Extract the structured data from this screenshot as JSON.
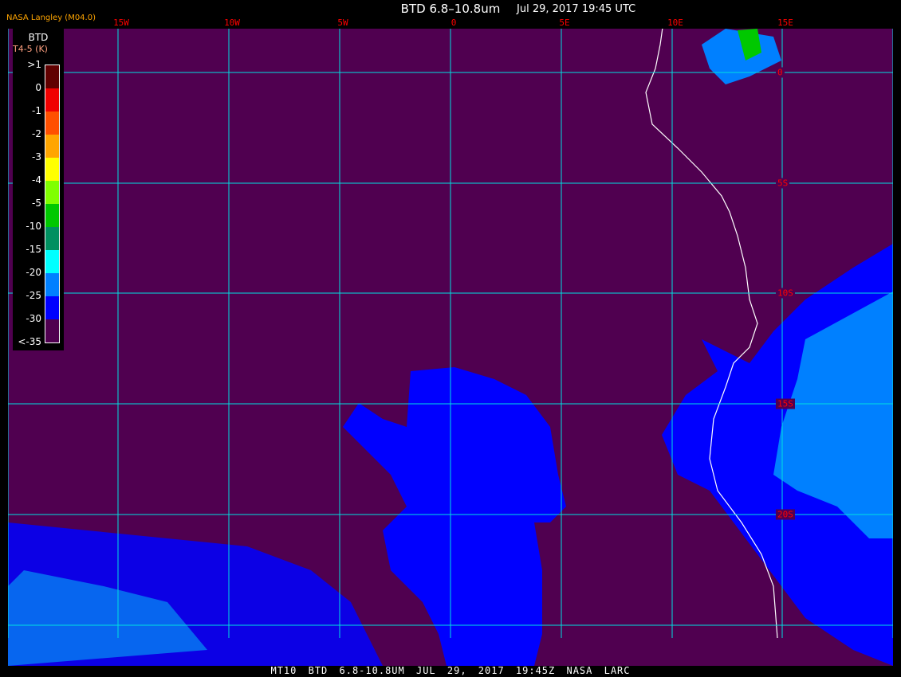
{
  "header": {
    "title": "BTD 6.8–10.8um",
    "date": "Jul 29, 2017 19:45 UTC",
    "producer": "NASA Langley (M04.0)"
  },
  "map": {
    "lon_labels": [
      "15W",
      "10W",
      "5W",
      "0",
      "5E",
      "10E",
      "15E"
    ],
    "lat_labels": [
      "0",
      "5S",
      "10S",
      "15S",
      "20S"
    ],
    "colors": {
      "background": "#500050",
      "gridline": "#00ffff",
      "coastline": "#ffffff",
      "moist_layer": "#0000ff",
      "moist_layer_light": "#0080ff"
    }
  },
  "legend": {
    "title": "BTD",
    "subtitle": "T4-5 (K)",
    "labels": [
      ">1",
      "0",
      "-1",
      "-2",
      "-3",
      "-4",
      "-5",
      "-10",
      "-15",
      "-20",
      "-25",
      "-30",
      "<-35"
    ],
    "colors": [
      "#600000",
      "#f00000",
      "#ff5000",
      "#ffa500",
      "#ffff00",
      "#80ff00",
      "#00c800",
      "#009060",
      "#00ffff",
      "#0080ff",
      "#0000ff",
      "#500050"
    ]
  },
  "footer": "MT10  BTD 6.8-10.8UM  JUL 29, 2017 19:45Z  NASA LARC"
}
